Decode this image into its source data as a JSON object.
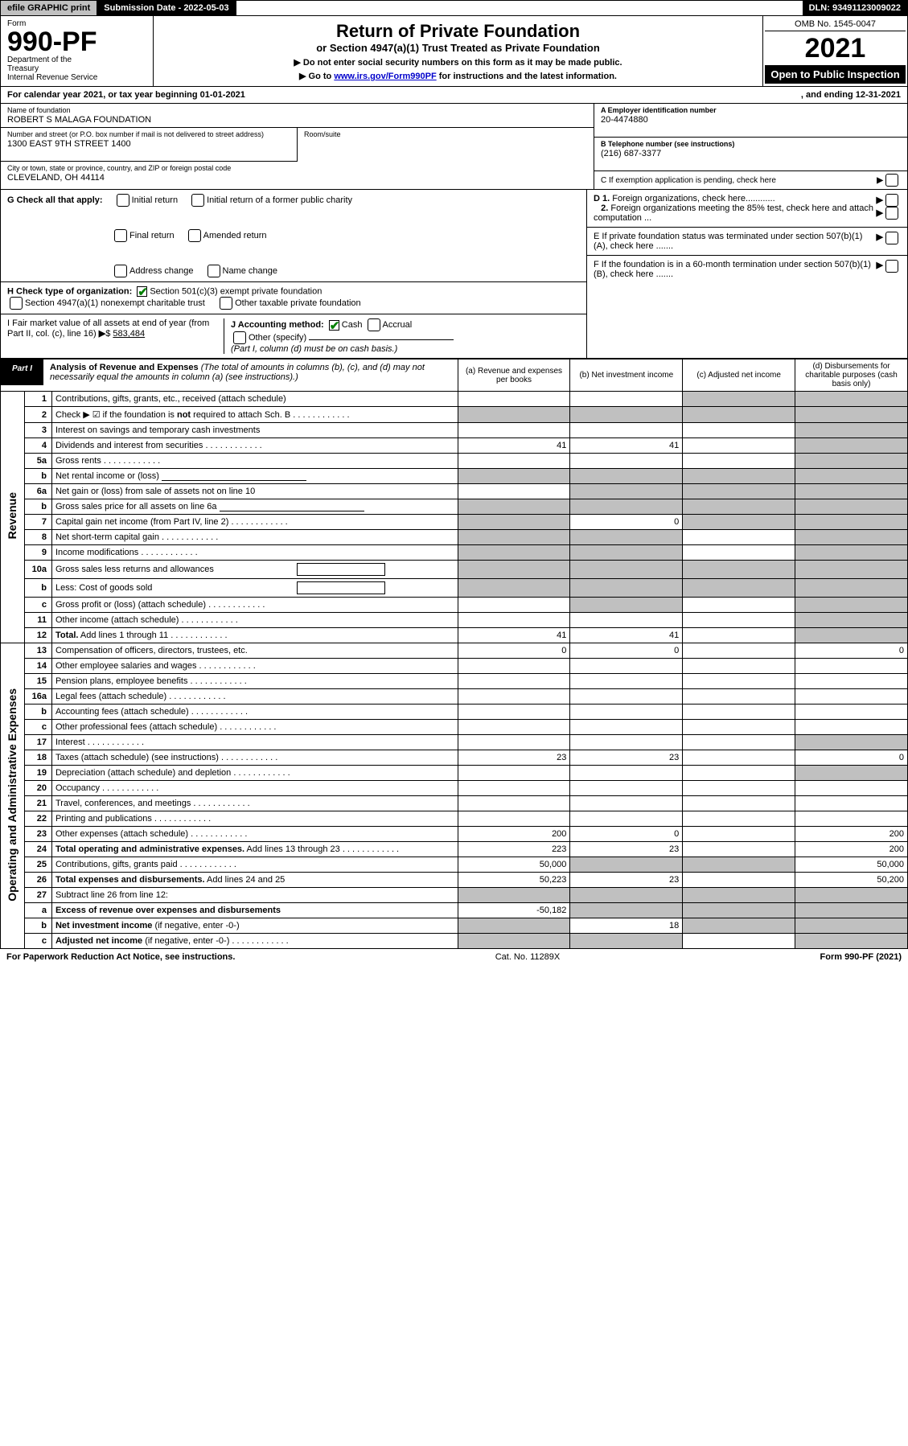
{
  "colors": {
    "black": "#000000",
    "white": "#ffffff",
    "header_grey": "#c0c0c0",
    "cell_grey": "#c0c0c0",
    "link_blue": "#0000cc",
    "check_green": "#008000"
  },
  "topbar": {
    "efile": "efile GRAPHIC print",
    "sub_date_label": "Submission Date - 2022-05-03",
    "dln": "DLN: 93491123009022"
  },
  "header": {
    "form_label": "Form",
    "form_no": "990-PF",
    "dept1": "Department of the",
    "dept2": "Treasury",
    "dept3": "Internal Revenue Service",
    "title": "Return of Private Foundation",
    "subtitle": "or Section 4947(a)(1) Trust Treated as Private Foundation",
    "note1": "▶ Do not enter social security numbers on this form as it may be made public.",
    "note2_pre": "▶ Go to ",
    "note2_link": "www.irs.gov/Form990PF",
    "note2_post": " for instructions and the latest information.",
    "omb": "OMB No. 1545-0047",
    "year": "2021",
    "open": "Open to Public Inspection"
  },
  "calyear": {
    "left": "For calendar year 2021, or tax year beginning 01-01-2021",
    "right": ", and ending 12-31-2021"
  },
  "identity": {
    "name_lbl": "Name of foundation",
    "name": "ROBERT S MALAGA FOUNDATION",
    "addr_lbl": "Number and street (or P.O. box number if mail is not delivered to street address)",
    "addr": "1300 EAST 9TH STREET 1400",
    "room_lbl": "Room/suite",
    "city_lbl": "City or town, state or province, country, and ZIP or foreign postal code",
    "city": "CLEVELAND, OH  44114",
    "ein_lbl": "A Employer identification number",
    "ein": "20-4474880",
    "phone_lbl": "B Telephone number (see instructions)",
    "phone": "(216) 687-3377",
    "c_lbl": "C If exemption application is pending, check here"
  },
  "checks": {
    "g_label": "G Check all that apply:",
    "g_initial": "Initial return",
    "g_initial_former": "Initial return of a former public charity",
    "g_final": "Final return",
    "g_amended": "Amended return",
    "g_addr": "Address change",
    "g_name": "Name change",
    "h_label": "H Check type of organization:",
    "h_501c3": "Section 501(c)(3) exempt private foundation",
    "h_4947": "Section 4947(a)(1) nonexempt charitable trust",
    "h_other_tax": "Other taxable private foundation",
    "i_label": "I Fair market value of all assets at end of year (from Part II, col. (c), line 16)",
    "i_val": "583,484",
    "j_label": "J Accounting method:",
    "j_cash": "Cash",
    "j_accrual": "Accrual",
    "j_other": "Other (specify)",
    "j_note": "(Part I, column (d) must be on cash basis.)",
    "d1": "D 1. Foreign organizations, check here............",
    "d2": "2. Foreign organizations meeting the 85% test, check here and attach computation ...",
    "e": "E  If private foundation status was terminated under section 507(b)(1)(A), check here .......",
    "f": "F  If the foundation is in a 60-month termination under section 507(b)(1)(B), check here .......",
    "arrow": "▶"
  },
  "part1": {
    "badge": "Part I",
    "title": "Analysis of Revenue and Expenses",
    "paren": "(The total of amounts in columns (b), (c), and (d) may not necessarily equal the amounts in column (a) (see instructions).)",
    "col_a": "(a)   Revenue and expenses per books",
    "col_b": "(b)   Net investment income",
    "col_c": "(c)   Adjusted net income",
    "col_d": "(d)  Disbursements for charitable purposes (cash basis only)"
  },
  "section_labels": {
    "revenue": "Revenue",
    "expenses": "Operating and Administrative Expenses"
  },
  "rows": [
    {
      "n": "1",
      "t": "Contributions, gifts, grants, etc., received (attach schedule)",
      "a": "",
      "b": "",
      "c": "g",
      "d": "g"
    },
    {
      "n": "2",
      "t": "Check ▶ ☑ if the foundation is <b>not</b> required to attach Sch. B",
      "dots": true,
      "a": "g",
      "b": "g",
      "c": "g",
      "d": "g"
    },
    {
      "n": "3",
      "t": "Interest on savings and temporary cash investments",
      "a": "",
      "b": "",
      "c": "",
      "d": "g"
    },
    {
      "n": "4",
      "t": "Dividends and interest from securities",
      "dots": true,
      "a": "41",
      "b": "41",
      "c": "",
      "d": "g"
    },
    {
      "n": "5a",
      "t": "Gross rents",
      "dots": true,
      "a": "",
      "b": "",
      "c": "",
      "d": "g"
    },
    {
      "n": "b",
      "t": "Net rental income or (loss)",
      "line": true,
      "a": "g",
      "b": "g",
      "c": "g",
      "d": "g"
    },
    {
      "n": "6a",
      "t": "Net gain or (loss) from sale of assets not on line 10",
      "a": "",
      "b": "g",
      "c": "g",
      "d": "g"
    },
    {
      "n": "b",
      "t": "Gross sales price for all assets on line 6a",
      "line": true,
      "a": "g",
      "b": "g",
      "c": "g",
      "d": "g"
    },
    {
      "n": "7",
      "t": "Capital gain net income (from Part IV, line 2)",
      "dots": true,
      "a": "g",
      "b": "0",
      "c": "g",
      "d": "g"
    },
    {
      "n": "8",
      "t": "Net short-term capital gain",
      "dots": true,
      "a": "g",
      "b": "g",
      "c": "",
      "d": "g"
    },
    {
      "n": "9",
      "t": "Income modifications",
      "dots": true,
      "a": "g",
      "b": "g",
      "c": "",
      "d": "g"
    },
    {
      "n": "10a",
      "t": "Gross sales less returns and allowances",
      "box": true,
      "a": "g",
      "b": "g",
      "c": "g",
      "d": "g"
    },
    {
      "n": "b",
      "t": "Less: Cost of goods sold",
      "dots": true,
      "box": true,
      "a": "g",
      "b": "g",
      "c": "g",
      "d": "g"
    },
    {
      "n": "c",
      "t": "Gross profit or (loss) (attach schedule)",
      "dots": true,
      "a": "",
      "b": "g",
      "c": "",
      "d": "g"
    },
    {
      "n": "11",
      "t": "Other income (attach schedule)",
      "dots": true,
      "a": "",
      "b": "",
      "c": "",
      "d": "g"
    },
    {
      "n": "12",
      "t": "<b>Total.</b> Add lines 1 through 11",
      "dots": true,
      "a": "41",
      "b": "41",
      "c": "",
      "d": "g"
    },
    {
      "n": "13",
      "t": "Compensation of officers, directors, trustees, etc.",
      "a": "0",
      "b": "0",
      "c": "",
      "d": "0"
    },
    {
      "n": "14",
      "t": "Other employee salaries and wages",
      "dots": true,
      "a": "",
      "b": "",
      "c": "",
      "d": ""
    },
    {
      "n": "15",
      "t": "Pension plans, employee benefits",
      "dots": true,
      "a": "",
      "b": "",
      "c": "",
      "d": ""
    },
    {
      "n": "16a",
      "t": "Legal fees (attach schedule)",
      "dots": true,
      "a": "",
      "b": "",
      "c": "",
      "d": ""
    },
    {
      "n": "b",
      "t": "Accounting fees (attach schedule)",
      "dots": true,
      "a": "",
      "b": "",
      "c": "",
      "d": ""
    },
    {
      "n": "c",
      "t": "Other professional fees (attach schedule)",
      "dots": true,
      "a": "",
      "b": "",
      "c": "",
      "d": ""
    },
    {
      "n": "17",
      "t": "Interest",
      "dots": true,
      "a": "",
      "b": "",
      "c": "",
      "d": "g"
    },
    {
      "n": "18",
      "t": "Taxes (attach schedule) (see instructions)",
      "dots": true,
      "a": "23",
      "b": "23",
      "c": "",
      "d": "0"
    },
    {
      "n": "19",
      "t": "Depreciation (attach schedule) and depletion",
      "dots": true,
      "a": "",
      "b": "",
      "c": "",
      "d": "g"
    },
    {
      "n": "20",
      "t": "Occupancy",
      "dots": true,
      "a": "",
      "b": "",
      "c": "",
      "d": ""
    },
    {
      "n": "21",
      "t": "Travel, conferences, and meetings",
      "dots": true,
      "a": "",
      "b": "",
      "c": "",
      "d": ""
    },
    {
      "n": "22",
      "t": "Printing and publications",
      "dots": true,
      "a": "",
      "b": "",
      "c": "",
      "d": ""
    },
    {
      "n": "23",
      "t": "Other expenses (attach schedule)",
      "dots": true,
      "a": "200",
      "b": "0",
      "c": "",
      "d": "200"
    },
    {
      "n": "24",
      "t": "<b>Total operating and administrative expenses.</b> Add lines 13 through 23",
      "dots": true,
      "a": "223",
      "b": "23",
      "c": "",
      "d": "200"
    },
    {
      "n": "25",
      "t": "Contributions, gifts, grants paid",
      "dots": true,
      "a": "50,000",
      "b": "g",
      "c": "g",
      "d": "50,000"
    },
    {
      "n": "26",
      "t": "<b>Total expenses and disbursements.</b> Add lines 24 and 25",
      "a": "50,223",
      "b": "23",
      "c": "",
      "d": "50,200"
    },
    {
      "n": "27",
      "t": "Subtract line 26 from line 12:",
      "a": "g",
      "b": "g",
      "c": "g",
      "d": "g"
    },
    {
      "n": "a",
      "t": "<b>Excess of revenue over expenses and disbursements</b>",
      "a": "-50,182",
      "b": "g",
      "c": "g",
      "d": "g"
    },
    {
      "n": "b",
      "t": "<b>Net investment income</b> (if negative, enter -0-)",
      "a": "g",
      "b": "18",
      "c": "g",
      "d": "g"
    },
    {
      "n": "c",
      "t": "<b>Adjusted net income</b> (if negative, enter -0-)",
      "dots": true,
      "a": "g",
      "b": "g",
      "c": "",
      "d": "g"
    }
  ],
  "footer": {
    "left": "For Paperwork Reduction Act Notice, see instructions.",
    "mid": "Cat. No. 11289X",
    "right": "Form 990-PF (2021)"
  }
}
